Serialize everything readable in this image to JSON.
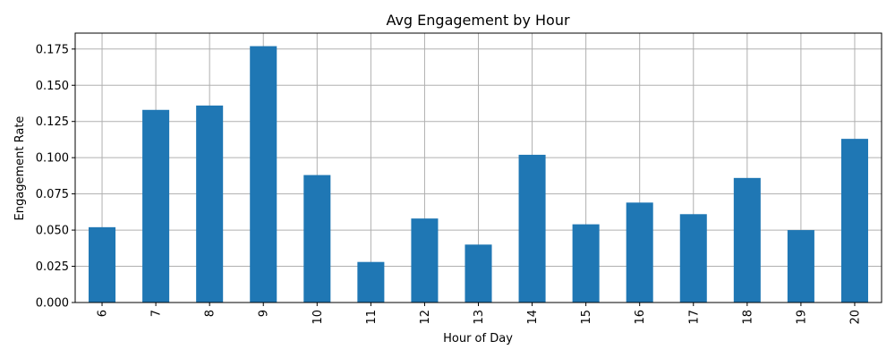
{
  "chart_data": {
    "type": "bar",
    "title": "Avg Engagement by Hour",
    "xlabel": "Hour of Day",
    "ylabel": "Engagement Rate",
    "categories": [
      "6",
      "7",
      "8",
      "9",
      "10",
      "11",
      "12",
      "13",
      "14",
      "15",
      "16",
      "17",
      "18",
      "19",
      "20"
    ],
    "values": [
      0.052,
      0.133,
      0.136,
      0.177,
      0.088,
      0.028,
      0.058,
      0.04,
      0.102,
      0.054,
      0.069,
      0.061,
      0.086,
      0.05,
      0.113
    ],
    "ylim": [
      0,
      0.186
    ],
    "yticks": [
      "0.000",
      "0.025",
      "0.050",
      "0.075",
      "0.100",
      "0.125",
      "0.150",
      "0.175"
    ],
    "xtick_rotation": "vertical",
    "grid": true,
    "legend": "none",
    "bar_color": "#1f77b4",
    "grid_color": "#b0b0b0"
  }
}
